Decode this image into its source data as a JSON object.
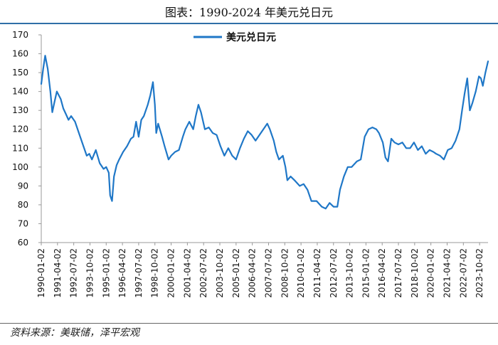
{
  "title": "图表：1990-2024 年美元兑日元",
  "source": "资料来源：美联储，泽平宏观",
  "colors": {
    "line": "#1f77c7",
    "axis": "#999999",
    "text": "#111111",
    "rule": "#2f6fa7"
  },
  "chart_data": {
    "type": "line",
    "title": "图表：1990-2024 年美元兑日元",
    "legend": {
      "position": "top-center"
    },
    "xlabel": "",
    "ylabel": "",
    "ylim": [
      60,
      170
    ],
    "yticks": [
      60,
      70,
      80,
      90,
      100,
      110,
      120,
      130,
      140,
      150,
      160,
      170
    ],
    "xlim": [
      1990.0,
      2024.4
    ],
    "xticks": [
      {
        "label": "1990-01-02",
        "value": 1990.0
      },
      {
        "label": "1991-04-02",
        "value": 1991.25
      },
      {
        "label": "1992-07-02",
        "value": 1992.5
      },
      {
        "label": "1993-10-02",
        "value": 1993.75
      },
      {
        "label": "1995-01-02",
        "value": 1995.0
      },
      {
        "label": "1996-04-02",
        "value": 1996.25
      },
      {
        "label": "1997-07-02",
        "value": 1997.5
      },
      {
        "label": "1998-10-02",
        "value": 1998.75
      },
      {
        "label": "2000-01-02",
        "value": 2000.0
      },
      {
        "label": "2001-04-02",
        "value": 2001.25
      },
      {
        "label": "2002-07-02",
        "value": 2002.5
      },
      {
        "label": "2003-10-02",
        "value": 2003.75
      },
      {
        "label": "2005-01-02",
        "value": 2005.0
      },
      {
        "label": "2006-04-02",
        "value": 2006.25
      },
      {
        "label": "2007-07-02",
        "value": 2007.5
      },
      {
        "label": "2008-10-02",
        "value": 2008.75
      },
      {
        "label": "2010-01-02",
        "value": 2010.0
      },
      {
        "label": "2011-04-02",
        "value": 2011.25
      },
      {
        "label": "2012-07-02",
        "value": 2012.5
      },
      {
        "label": "2013-10-02",
        "value": 2013.75
      },
      {
        "label": "2015-01-02",
        "value": 2015.0
      },
      {
        "label": "2016-04-02",
        "value": 2016.25
      },
      {
        "label": "2017-07-02",
        "value": 2017.5
      },
      {
        "label": "2018-10-02",
        "value": 2018.75
      },
      {
        "label": "2020-01-02",
        "value": 2020.0
      },
      {
        "label": "2021-04-02",
        "value": 2021.25
      },
      {
        "label": "2022-07-02",
        "value": 2022.5
      },
      {
        "label": "2023-10-02",
        "value": 2023.75
      }
    ],
    "series": [
      {
        "name": "美元兑日元",
        "x": [
          1990.0,
          1990.15,
          1990.3,
          1990.5,
          1990.7,
          1990.85,
          1991.0,
          1991.2,
          1991.35,
          1991.5,
          1991.7,
          1991.9,
          1992.1,
          1992.3,
          1992.6,
          1992.9,
          1993.2,
          1993.5,
          1993.7,
          1993.9,
          1994.2,
          1994.5,
          1994.8,
          1995.0,
          1995.2,
          1995.3,
          1995.45,
          1995.6,
          1995.8,
          1996.0,
          1996.3,
          1996.6,
          1996.9,
          1997.1,
          1997.3,
          1997.5,
          1997.7,
          1997.9,
          1998.2,
          1998.4,
          1998.6,
          1998.75,
          1998.85,
          1999.0,
          1999.3,
          1999.5,
          1999.8,
          2000.0,
          2000.3,
          2000.6,
          2000.9,
          2001.1,
          2001.4,
          2001.7,
          2001.9,
          2002.1,
          2002.3,
          2002.6,
          2002.9,
          2003.2,
          2003.5,
          2003.8,
          2004.1,
          2004.4,
          2004.7,
          2005.0,
          2005.3,
          2005.6,
          2005.9,
          2006.2,
          2006.5,
          2006.8,
          2007.1,
          2007.4,
          2007.6,
          2007.9,
          2008.1,
          2008.3,
          2008.6,
          2008.8,
          2008.95,
          2009.2,
          2009.5,
          2009.9,
          2010.2,
          2010.5,
          2010.8,
          2011.2,
          2011.6,
          2011.9,
          2012.2,
          2012.5,
          2012.8,
          2013.0,
          2013.3,
          2013.6,
          2013.9,
          2014.3,
          2014.6,
          2014.9,
          2015.2,
          2015.5,
          2015.8,
          2016.0,
          2016.3,
          2016.5,
          2016.7,
          2016.95,
          2017.2,
          2017.5,
          2017.8,
          2018.1,
          2018.4,
          2018.7,
          2019.0,
          2019.3,
          2019.6,
          2019.9,
          2020.2,
          2020.4,
          2020.7,
          2021.0,
          2021.3,
          2021.6,
          2021.9,
          2022.2,
          2022.4,
          2022.6,
          2022.8,
          2023.0,
          2023.2,
          2023.45,
          2023.7,
          2023.85,
          2024.0,
          2024.2,
          2024.4
        ],
        "values": [
          144,
          152,
          159,
          152,
          140,
          129,
          134,
          140,
          138,
          136,
          131,
          128,
          125,
          127,
          124,
          118,
          112,
          106,
          107,
          104,
          109,
          102,
          99,
          100,
          97,
          85,
          82,
          95,
          101,
          104,
          108,
          111,
          115,
          116,
          124,
          116,
          125,
          127,
          133,
          138,
          145,
          133,
          118,
          123,
          116,
          111,
          104,
          106,
          108,
          109,
          116,
          120,
          124,
          120,
          127,
          133,
          129,
          120,
          121,
          118,
          117,
          111,
          106,
          110,
          106,
          104,
          110,
          115,
          119,
          117,
          114,
          117,
          120,
          123,
          120,
          114,
          108,
          104,
          106,
          100,
          93,
          95,
          93,
          90,
          91,
          88,
          82,
          82,
          79,
          78,
          81,
          79,
          79,
          88,
          95,
          100,
          100,
          103,
          104,
          116,
          120,
          121,
          120,
          118,
          113,
          105,
          103,
          115,
          113,
          112,
          113,
          110,
          110,
          113,
          109,
          111,
          107,
          109,
          108,
          107,
          106,
          104,
          109,
          110,
          114,
          120,
          130,
          139,
          147,
          130,
          134,
          140,
          148,
          147,
          143,
          150,
          156
        ]
      }
    ]
  }
}
